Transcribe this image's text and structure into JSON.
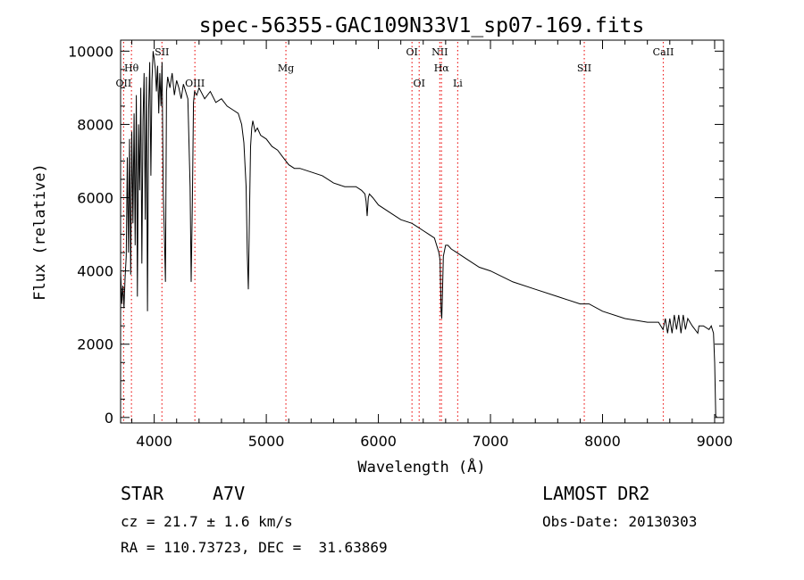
{
  "chart_data": {
    "type": "line",
    "title": "spec-56355-GAC109N33V1_sp07-169.fits",
    "xlabel": "Wavelength (Å)",
    "ylabel": "Flux (relative)",
    "xlim": [
      3700,
      9080
    ],
    "ylim": [
      -150,
      10300
    ],
    "xticks": [
      4000,
      5000,
      6000,
      7000,
      8000,
      9000
    ],
    "xtick_labels": [
      "4000",
      "5000",
      "6000",
      "7000",
      "8000",
      "9000"
    ],
    "yticks": [
      0,
      2000,
      4000,
      6000,
      8000,
      10000
    ],
    "ytick_labels": [
      "0",
      "2000",
      "4000",
      "6000",
      "8000",
      "10000"
    ],
    "series": [
      {
        "name": "flux",
        "x": [
          3700,
          3710,
          3720,
          3730,
          3740,
          3750,
          3760,
          3770,
          3780,
          3790,
          3800,
          3810,
          3820,
          3830,
          3840,
          3850,
          3860,
          3870,
          3880,
          3890,
          3900,
          3910,
          3920,
          3930,
          3940,
          3950,
          3960,
          3970,
          3980,
          3990,
          4000,
          4010,
          4020,
          4030,
          4040,
          4050,
          4060,
          4070,
          4080,
          4090,
          4100,
          4110,
          4120,
          4140,
          4160,
          4180,
          4200,
          4220,
          4240,
          4260,
          4280,
          4300,
          4320,
          4330,
          4340,
          4350,
          4360,
          4380,
          4400,
          4450,
          4500,
          4550,
          4600,
          4650,
          4700,
          4750,
          4780,
          4800,
          4820,
          4830,
          4840,
          4850,
          4860,
          4870,
          4880,
          4900,
          4920,
          4950,
          5000,
          5050,
          5100,
          5150,
          5200,
          5250,
          5300,
          5400,
          5500,
          5600,
          5700,
          5800,
          5850,
          5880,
          5890,
          5900,
          5910,
          5920,
          5950,
          6000,
          6100,
          6200,
          6300,
          6400,
          6450,
          6500,
          6520,
          6540,
          6550,
          6560,
          6565,
          6570,
          6580,
          6600,
          6620,
          6650,
          6700,
          6800,
          6900,
          7000,
          7200,
          7400,
          7600,
          7800,
          7850,
          7880,
          8000,
          8200,
          8400,
          8500,
          8520,
          8540,
          8560,
          8580,
          8600,
          8620,
          8640,
          8660,
          8680,
          8700,
          8720,
          8740,
          8760,
          8800,
          8850,
          8860,
          8900,
          8950,
          8970,
          8990,
          9000,
          9010,
          9020
        ],
        "y": [
          4000,
          3100,
          3600,
          3000,
          3800,
          4400,
          7100,
          4500,
          7600,
          3900,
          7800,
          5300,
          8300,
          4700,
          8800,
          3300,
          8000,
          6200,
          9000,
          4200,
          8100,
          9400,
          5400,
          9300,
          2900,
          8400,
          9700,
          6600,
          9200,
          10000,
          9800,
          9500,
          8900,
          9600,
          8300,
          9400,
          8500,
          9700,
          6200,
          5100,
          3700,
          8900,
          9300,
          9000,
          9400,
          8800,
          9200,
          9000,
          8700,
          9100,
          8900,
          8700,
          6300,
          3700,
          5800,
          8600,
          8900,
          8800,
          9000,
          8700,
          8900,
          8600,
          8700,
          8500,
          8400,
          8300,
          8000,
          7500,
          6300,
          4500,
          3500,
          5600,
          7400,
          7900,
          8100,
          7800,
          7900,
          7700,
          7600,
          7400,
          7300,
          7100,
          6900,
          6800,
          6800,
          6700,
          6600,
          6400,
          6300,
          6300,
          6200,
          6100,
          5900,
          5500,
          6000,
          6100,
          6000,
          5800,
          5600,
          5400,
          5300,
          5100,
          5000,
          4900,
          4700,
          4500,
          4300,
          2900,
          2700,
          3200,
          4400,
          4700,
          4700,
          4600,
          4500,
          4300,
          4100,
          4000,
          3700,
          3500,
          3300,
          3100,
          3100,
          3100,
          2900,
          2700,
          2600,
          2600,
          2500,
          2400,
          2700,
          2300,
          2700,
          2300,
          2800,
          2400,
          2800,
          2300,
          2800,
          2400,
          2700,
          2500,
          2300,
          2500,
          2500,
          2400,
          2500,
          2300,
          1500,
          50,
          0
        ]
      }
    ],
    "lines": [
      {
        "label": "Hθ",
        "x": 3797,
        "row": 1
      },
      {
        "label": "OII",
        "x": 3727,
        "row": 2
      },
      {
        "label": "SII",
        "x": 4069,
        "row": 0
      },
      {
        "label": "OIII",
        "x": 4363,
        "row": 2
      },
      {
        "label": "Mg",
        "x": 5175,
        "row": 1
      },
      {
        "label": "OI",
        "x": 6300,
        "row": 0
      },
      {
        "label": "OI",
        "x": 6364,
        "row": 2
      },
      {
        "label": "NII",
        "x": 6548,
        "row": 0
      },
      {
        "label": "Hα",
        "x": 6563,
        "row": 1
      },
      {
        "label": "Li",
        "x": 6708,
        "row": 2
      },
      {
        "label": "SII",
        "x": 7837,
        "row": 1
      },
      {
        "label": "CaII",
        "x": 8542,
        "row": 0
      }
    ]
  },
  "info": {
    "class": "STAR",
    "subclass": "A7V",
    "survey": "LAMOST DR2",
    "cz": "cz = 21.7 ± 1.6 km/s",
    "obs_date": "Obs-Date: 20130303",
    "coords": "RA = 110.73723, DEC =  31.63869"
  }
}
